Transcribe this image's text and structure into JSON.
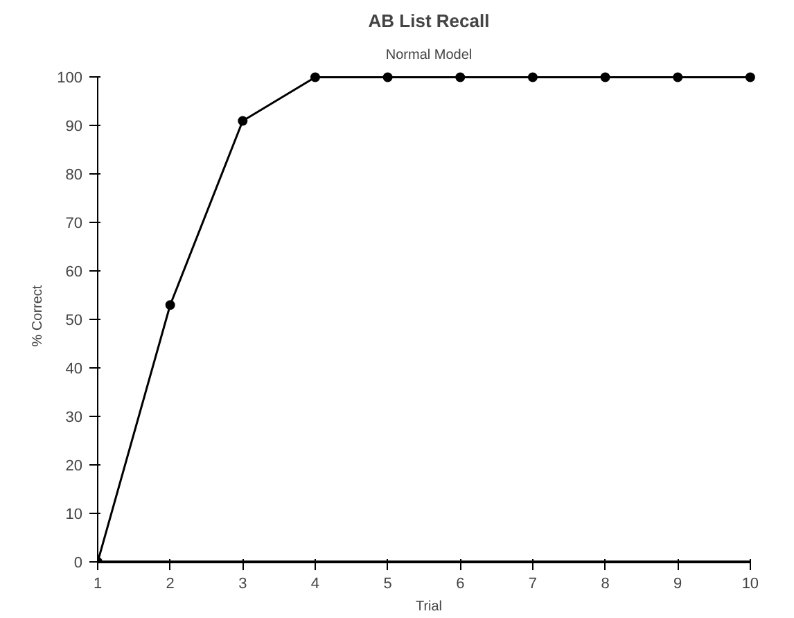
{
  "chart_data": {
    "type": "line",
    "title": "AB List Recall",
    "subtitle": "Normal Model",
    "xlabel": "Trial",
    "ylabel": "% Correct",
    "x": [
      1,
      2,
      3,
      4,
      5,
      6,
      7,
      8,
      9,
      10
    ],
    "series": [
      {
        "color": "#000000",
        "values": [
          0,
          53,
          91,
          100,
          100,
          100,
          100,
          100,
          100,
          100
        ]
      }
    ],
    "xlim": [
      1,
      10
    ],
    "xticks": [
      1,
      2,
      3,
      4,
      5,
      6,
      7,
      8,
      9,
      10
    ],
    "ylim": [
      0,
      100
    ],
    "yticks": [
      0,
      10,
      20,
      30,
      40,
      50,
      60,
      70,
      80,
      90,
      100
    ],
    "grid": false,
    "marker": "circle",
    "line_style": "solid"
  }
}
